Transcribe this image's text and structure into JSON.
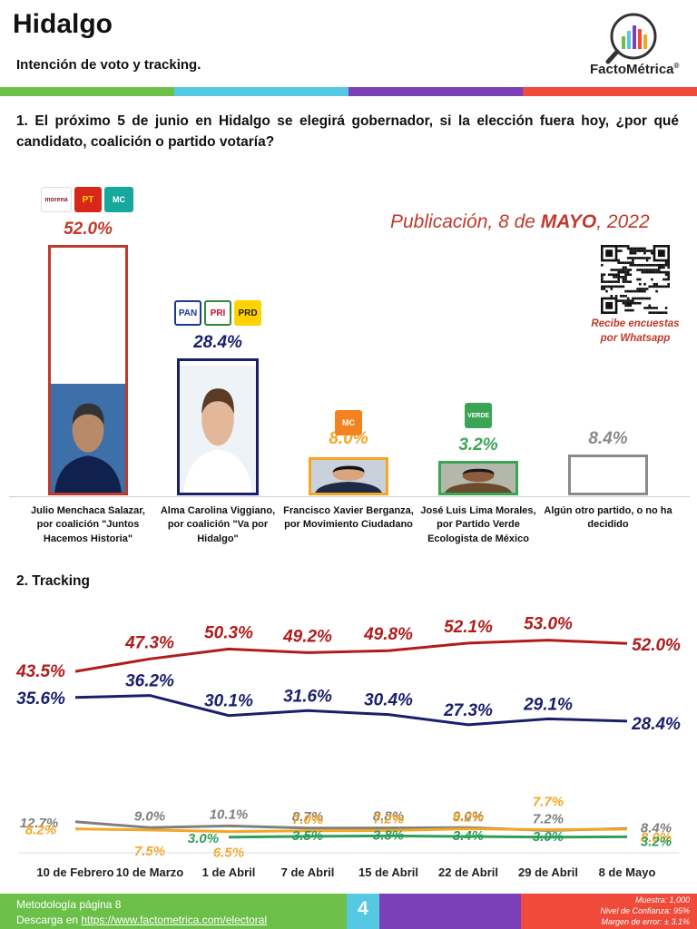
{
  "header": {
    "title": "Hidalgo",
    "subtitle": "Intención de voto y tracking.",
    "brand": "FactoMétrica",
    "brand_mark": "®",
    "bar_colors": [
      "#6cc04a",
      "#55c8e3",
      "#7b3fb8",
      "#ef4a3a"
    ]
  },
  "question": "1. El próximo 5 de junio en Hidalgo se elegirá gobernador, si la elección fuera hoy, ¿por qué candidato, coalición o partido votaría?",
  "publication": {
    "prefix": "Publicación, 8 de ",
    "month": "MAYO",
    "suffix": ", 2022"
  },
  "whatsapp": {
    "caption_line1": "Recibe encuestas",
    "caption_line2": "por Whatsapp"
  },
  "chart_data": [
    {
      "type": "bar",
      "categories": [
        "Julio Menchaca Salazar, por coalición \"Juntos Hacemos Historia\"",
        "Alma Carolina Viggiano, por coalición \"Va por Hidalgo\"",
        "Francisco Xavier Berganza, por Movimiento Ciudadano",
        "José Luis Lima Morales, por Partido Verde Ecologista de México",
        "Algún otro partido, o no ha decidido"
      ],
      "values": [
        52.0,
        28.4,
        8.0,
        3.2,
        8.4
      ],
      "labels": [
        "52.0%",
        "28.4%",
        "8.0%",
        "3.2%",
        "8.4%"
      ],
      "colors": [
        "#c0392b",
        "#1a1f6b",
        "#f5a623",
        "#3aa655",
        "#8a8a8a"
      ],
      "party_logos": [
        [
          "morena",
          "PT",
          "alianza"
        ],
        [
          "PAN",
          "PRI",
          "PRD"
        ],
        [
          "MOVIMIENTO CIUDADANO"
        ],
        [
          "VERDE"
        ],
        []
      ]
    },
    {
      "type": "line",
      "title": "2. Tracking",
      "categories": [
        "10 de Febrero",
        "10 de Marzo",
        "1 de Abril",
        "7 de Abril",
        "15 de Abril",
        "22 de Abril",
        "29 de Abril",
        "8 de Mayo"
      ],
      "series": [
        {
          "color": "#b01c1c",
          "values": [
            43.5,
            47.3,
            50.3,
            49.2,
            49.8,
            52.1,
            53.0,
            52.0
          ],
          "labels": [
            "43.5%",
            "47.3%",
            "50.3%",
            "49.2%",
            "49.8%",
            "52.1%",
            "53.0%",
            "52.0%"
          ]
        },
        {
          "color": "#1a1f6b",
          "values": [
            35.6,
            36.2,
            30.1,
            31.6,
            30.4,
            27.3,
            29.1,
            28.4
          ],
          "labels": [
            "35.6%",
            "36.2%",
            "30.1%",
            "31.6%",
            "30.4%",
            "27.3%",
            "29.1%",
            "28.4%"
          ]
        },
        {
          "color": "#7f7f7f",
          "values": [
            12.7,
            9.0,
            10.1,
            8.7,
            8.8,
            9.0,
            7.2,
            8.4
          ],
          "labels": [
            "12.7%",
            "9.0%",
            "10.1%",
            "8.7%",
            "8.8%",
            "9.0%",
            "7.2%",
            "8.4%"
          ]
        },
        {
          "color": "#f5a623",
          "values": [
            8.2,
            7.5,
            6.5,
            7.0,
            7.2,
            8.2,
            7.7,
            8.0
          ],
          "labels": [
            "8.2%",
            "7.5%",
            "6.5%",
            "7.0%",
            "7.2%",
            "8.2%",
            "7.7%",
            "8.0%"
          ]
        },
        {
          "color": "#2e9e5b",
          "values": [
            null,
            null,
            3.0,
            3.5,
            3.8,
            3.4,
            3.0,
            3.2
          ],
          "labels": [
            null,
            null,
            "3.0%",
            "3.5%",
            "3.8%",
            "3.4%",
            "3.0%",
            "3.2%"
          ]
        }
      ]
    }
  ],
  "footer": {
    "methodology": "Metodología página 8",
    "download_prefix": "Descarga en ",
    "download_url": "https://www.factometrica.com/electoral",
    "page": "4",
    "sample": "Muestra:  1,000",
    "confidence": "Nivel de Confianza: 95%",
    "margin": "Margen de error: ± 3.1%",
    "colors": [
      "#6cc04a",
      "#55c8e3",
      "#7b3fb8",
      "#ef4a3a"
    ]
  }
}
